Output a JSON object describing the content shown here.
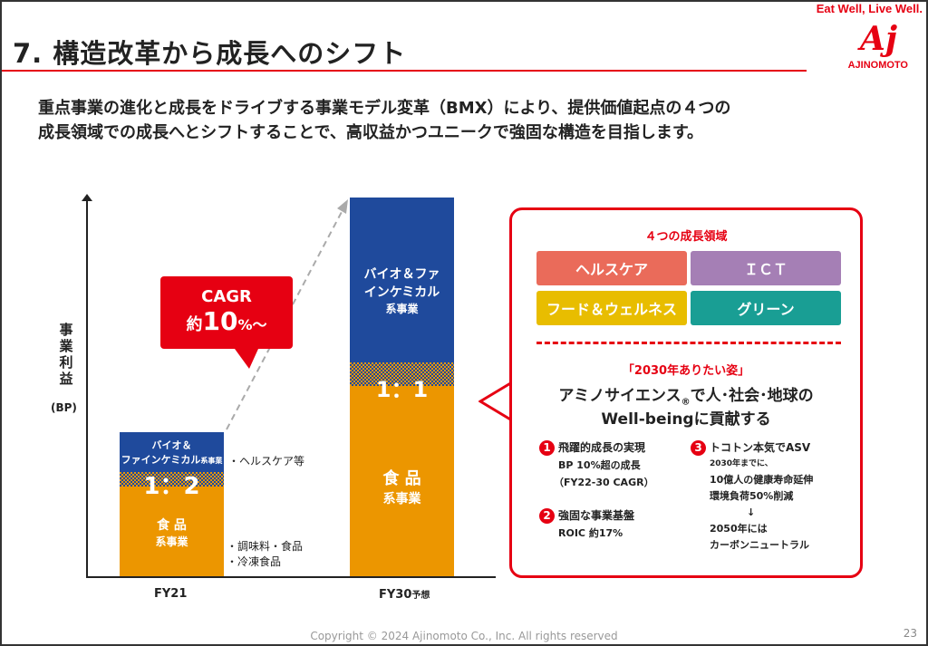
{
  "header": {
    "title": "7. 構造改革から成長へのシフト",
    "tagline": "Eat Well, Live Well.",
    "logo": "Aj",
    "brand": "AJINOMOTO"
  },
  "lead": [
    "重点事業の進化と成長をドライブする事業モデル変革（BMX）により、提供価値起点の４つの",
    "成長領域での成長へとシフトすることで、高収益かつユニークで強固な構造を目指します。"
  ],
  "chart": {
    "ylabel": "事業利益",
    "yunit": "(BP)",
    "fy21": {
      "label": "FY21",
      "top1": "バイオ＆",
      "top2": "ファインケミカル",
      "top2s": "系事業",
      "ratio": "1：2",
      "bottom1": "食 品",
      "bottom2": "系事業",
      "note_top": "・ヘルスケア等",
      "note_b1": "・調味料・食品",
      "note_b2": "・冷凍食品"
    },
    "fy30": {
      "label": "FY30",
      "label_suffix": "予想",
      "top1": "バイオ＆ファ",
      "top2": "インケミカル",
      "top3": "系事業",
      "ratio": "1：1",
      "bottom1": "食 品",
      "bottom2": "系事業"
    },
    "cagr": {
      "line1": "CAGR",
      "prefix": "約",
      "value": "10",
      "suffix": "%〜"
    }
  },
  "panel": {
    "heading": "４つの成長領域",
    "areas": [
      {
        "label": "ヘルスケア",
        "color": "#ea6b5a"
      },
      {
        "label": "ＩＣＴ",
        "color": "#a57fb5"
      },
      {
        "label": "フード＆ウェルネス",
        "color": "#e8bd00"
      },
      {
        "label": "グリーン",
        "color": "#199e94"
      }
    ],
    "vision_label": "「2030年ありたい姿」",
    "vision1": "アミノサイエンス",
    "reg": "®",
    "vision1b": "で人･社会･地球の",
    "vision2": "Well-beingに貢献する",
    "goals": [
      {
        "n": "1",
        "title": "飛躍的成長の実現",
        "l1": "BP 10%超の成長",
        "l2": "（FY22-30 CAGR）"
      },
      {
        "n": "2",
        "title": "強固な事業基盤",
        "l1": "ROIC 約17%"
      },
      {
        "n": "3",
        "title": "トコトン本気でASV",
        "l0": "2030年までに、",
        "l1": "10億人の健康寿命延伸",
        "l2": "環境負荷50%削減",
        "arrow": "↓",
        "l3": "2050年には",
        "l4": "カーボンニュートラル"
      }
    ]
  },
  "footer": {
    "copyright": "Copyright © 2024 Ajinomoto Co., Inc. All rights reserved",
    "page": "23"
  }
}
